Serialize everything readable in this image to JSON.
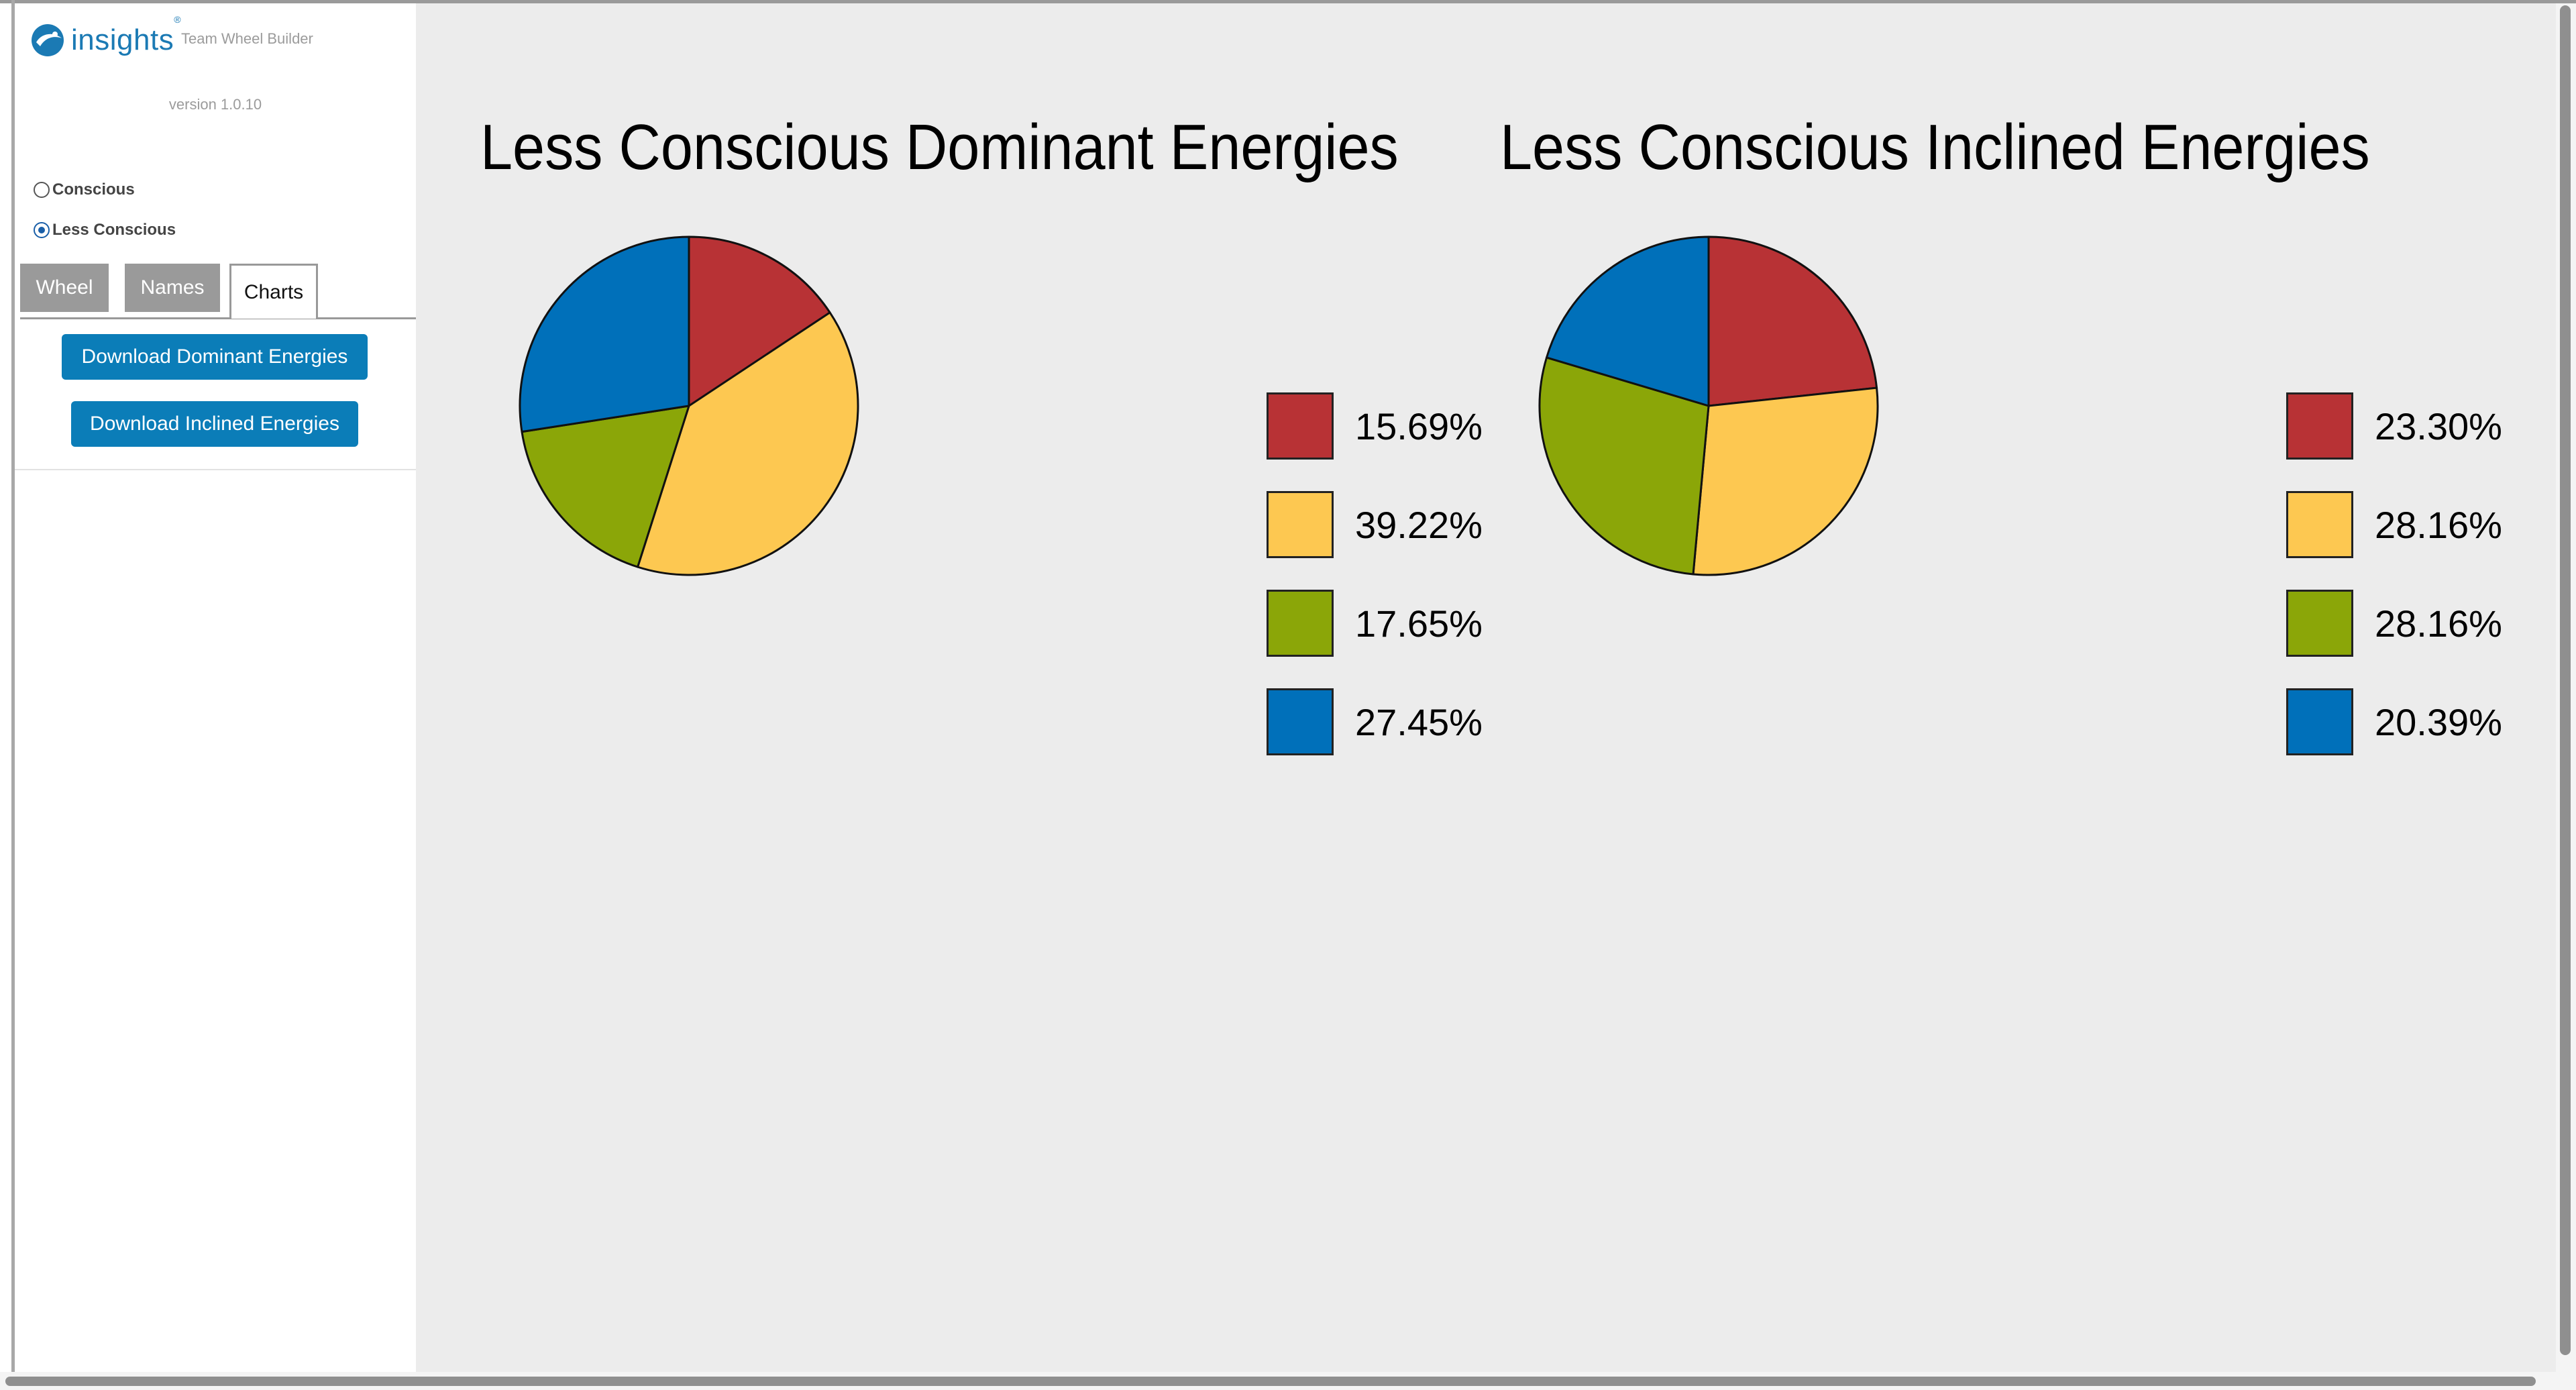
{
  "app": {
    "brand": "insights",
    "trademark": "®",
    "subtitle": "Team Wheel Builder",
    "version": "version 1.0.10"
  },
  "mode": {
    "options": [
      {
        "label": "Conscious",
        "checked": false
      },
      {
        "label": "Less Conscious",
        "checked": true
      }
    ]
  },
  "tabs": [
    {
      "label": "Wheel",
      "active": false
    },
    {
      "label": "Names",
      "active": false
    },
    {
      "label": "Charts",
      "active": true
    }
  ],
  "actions": {
    "download_dominant": "Download Dominant Energies",
    "download_inclined": "Download Inclined Energies"
  },
  "colors": {
    "red": "#b83235",
    "yellow": "#fdc851",
    "green": "#8ba608",
    "blue": "#0070ba",
    "brand": "#1b7ab4",
    "button": "#0b7db8"
  },
  "chart_data": [
    {
      "type": "pie",
      "title": "Less Conscious Dominant Energies",
      "labels": [
        "15.69%",
        "39.22%",
        "17.65%",
        "27.45%"
      ],
      "values": [
        15.69,
        39.22,
        17.65,
        27.45
      ],
      "colors": [
        "#b83235",
        "#fdc851",
        "#8ba608",
        "#0070ba"
      ],
      "legend": "right"
    },
    {
      "type": "pie",
      "title": "Less Conscious Inclined Energies",
      "labels": [
        "23.30%",
        "28.16%",
        "28.16%",
        "20.39%"
      ],
      "values": [
        23.3,
        28.16,
        28.16,
        20.39
      ],
      "colors": [
        "#b83235",
        "#fdc851",
        "#8ba608",
        "#0070ba"
      ],
      "legend": "right"
    }
  ]
}
